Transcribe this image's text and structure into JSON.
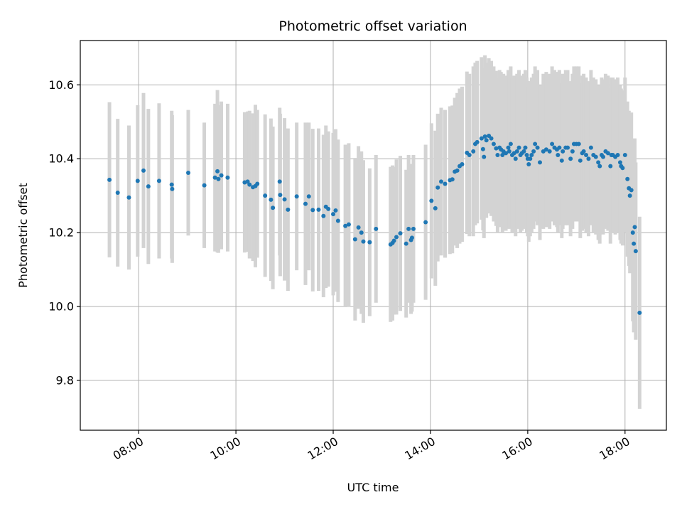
{
  "chart_data": {
    "type": "scatter",
    "title": "Photometric offset variation",
    "xlabel": "UTC time",
    "ylabel": "Photometric offset",
    "x_unit": "hours UTC",
    "xlim_hours": [
      6.8,
      18.85
    ],
    "ylim": [
      9.665,
      10.72
    ],
    "x_ticks": [
      {
        "hour": 8,
        "label": "08:00"
      },
      {
        "hour": 10,
        "label": "10:00"
      },
      {
        "hour": 12,
        "label": "12:00"
      },
      {
        "hour": 14,
        "label": "14:00"
      },
      {
        "hour": 16,
        "label": "16:00"
      },
      {
        "hour": 18,
        "label": "18:00"
      }
    ],
    "y_ticks": [
      {
        "value": 9.8,
        "label": "9.8"
      },
      {
        "value": 10.0,
        "label": "10.0"
      },
      {
        "value": 10.2,
        "label": "10.2"
      },
      {
        "value": 10.4,
        "label": "10.4"
      },
      {
        "value": 10.6,
        "label": "10.6"
      }
    ],
    "grid": true,
    "colors": {
      "points": "#1f77b4",
      "error_bars": "#d3d3d3",
      "grid": "#b0b0b0"
    },
    "series": [
      {
        "points": [
          [
            7.4,
            10.343,
            0.21
          ],
          [
            7.57,
            10.308,
            0.2
          ],
          [
            7.8,
            10.295,
            0.195
          ],
          [
            7.98,
            10.34,
            0.205
          ],
          [
            8.1,
            10.368,
            0.21
          ],
          [
            8.2,
            10.325,
            0.21
          ],
          [
            8.42,
            10.34,
            0.21
          ],
          [
            8.68,
            10.33,
            0.2
          ],
          [
            8.69,
            10.318,
            0.2
          ],
          [
            9.02,
            10.362,
            0.17
          ],
          [
            9.35,
            10.328,
            0.17
          ],
          [
            9.57,
            10.349,
            0.2
          ],
          [
            9.62,
            10.366,
            0.22
          ],
          [
            9.64,
            10.345,
            0.2
          ],
          [
            9.7,
            10.355,
            0.2
          ],
          [
            9.83,
            10.349,
            0.2
          ],
          [
            10.18,
            10.336,
            0.19
          ],
          [
            10.24,
            10.338,
            0.19
          ],
          [
            10.28,
            10.33,
            0.2
          ],
          [
            10.35,
            10.323,
            0.2
          ],
          [
            10.4,
            10.326,
            0.22
          ],
          [
            10.44,
            10.332,
            0.2
          ],
          [
            10.6,
            10.3,
            0.22
          ],
          [
            10.72,
            10.289,
            0.22
          ],
          [
            10.76,
            10.267,
            0.22
          ],
          [
            10.9,
            10.338,
            0.2
          ],
          [
            10.91,
            10.302,
            0.22
          ],
          [
            11.0,
            10.29,
            0.22
          ],
          [
            11.07,
            10.262,
            0.22
          ],
          [
            11.25,
            10.298,
            0.2
          ],
          [
            11.43,
            10.278,
            0.22
          ],
          [
            11.5,
            10.298,
            0.2
          ],
          [
            11.58,
            10.261,
            0.22
          ],
          [
            11.7,
            10.262,
            0.22
          ],
          [
            11.8,
            10.245,
            0.22
          ],
          [
            11.85,
            10.27,
            0.22
          ],
          [
            11.9,
            10.264,
            0.21
          ],
          [
            12.0,
            10.25,
            0.22
          ],
          [
            12.05,
            10.26,
            0.22
          ],
          [
            12.1,
            10.232,
            0.22
          ],
          [
            12.25,
            10.218,
            0.22
          ],
          [
            12.32,
            10.222,
            0.22
          ],
          [
            12.45,
            10.182,
            0.22
          ],
          [
            12.52,
            10.214,
            0.22
          ],
          [
            12.58,
            10.2,
            0.22
          ],
          [
            12.62,
            10.176,
            0.22
          ],
          [
            12.75,
            10.174,
            0.2
          ],
          [
            12.88,
            10.21,
            0.2
          ],
          [
            13.18,
            10.168,
            0.21
          ],
          [
            13.22,
            10.172,
            0.21
          ],
          [
            13.25,
            10.178,
            0.2
          ],
          [
            13.3,
            10.188,
            0.21
          ],
          [
            13.38,
            10.198,
            0.21
          ],
          [
            13.5,
            10.17,
            0.2
          ],
          [
            13.55,
            10.21,
            0.2
          ],
          [
            13.6,
            10.18,
            0.2
          ],
          [
            13.62,
            10.186,
            0.2
          ],
          [
            13.65,
            10.21,
            0.2
          ],
          [
            13.9,
            10.228,
            0.21
          ],
          [
            14.02,
            10.286,
            0.21
          ],
          [
            14.1,
            10.266,
            0.21
          ],
          [
            14.15,
            10.322,
            0.2
          ],
          [
            14.22,
            10.338,
            0.2
          ],
          [
            14.3,
            10.332,
            0.2
          ],
          [
            14.4,
            10.342,
            0.2
          ],
          [
            14.45,
            10.344,
            0.2
          ],
          [
            14.5,
            10.365,
            0.2
          ],
          [
            14.55,
            10.368,
            0.21
          ],
          [
            14.6,
            10.38,
            0.21
          ],
          [
            14.65,
            10.385,
            0.21
          ],
          [
            14.75,
            10.416,
            0.22
          ],
          [
            14.8,
            10.41,
            0.22
          ],
          [
            14.88,
            10.42,
            0.23
          ],
          [
            14.92,
            10.44,
            0.22
          ],
          [
            14.96,
            10.445,
            0.22
          ],
          [
            15.05,
            10.455,
            0.22
          ],
          [
            15.08,
            10.426,
            0.22
          ],
          [
            15.1,
            10.405,
            0.22
          ],
          [
            15.12,
            10.46,
            0.22
          ],
          [
            15.15,
            10.45,
            0.21
          ],
          [
            15.2,
            10.462,
            0.21
          ],
          [
            15.25,
            10.455,
            0.21
          ],
          [
            15.3,
            10.44,
            0.21
          ],
          [
            15.35,
            10.428,
            0.21
          ],
          [
            15.38,
            10.41,
            0.21
          ],
          [
            15.42,
            10.43,
            0.21
          ],
          [
            15.45,
            10.425,
            0.21
          ],
          [
            15.48,
            10.41,
            0.21
          ],
          [
            15.5,
            10.42,
            0.21
          ],
          [
            15.55,
            10.415,
            0.21
          ],
          [
            15.6,
            10.43,
            0.21
          ],
          [
            15.62,
            10.42,
            0.21
          ],
          [
            15.65,
            10.44,
            0.21
          ],
          [
            15.68,
            10.41,
            0.21
          ],
          [
            15.72,
            10.415,
            0.21
          ],
          [
            15.75,
            10.4,
            0.21
          ],
          [
            15.78,
            10.42,
            0.21
          ],
          [
            15.82,
            10.43,
            0.21
          ],
          [
            15.85,
            10.41,
            0.21
          ],
          [
            15.88,
            10.415,
            0.21
          ],
          [
            15.92,
            10.42,
            0.21
          ],
          [
            15.95,
            10.43,
            0.21
          ],
          [
            15.98,
            10.41,
            0.21
          ],
          [
            16.0,
            10.4,
            0.21
          ],
          [
            16.02,
            10.385,
            0.21
          ],
          [
            16.05,
            10.4,
            0.21
          ],
          [
            16.08,
            10.41,
            0.21
          ],
          [
            16.12,
            10.42,
            0.21
          ],
          [
            16.15,
            10.44,
            0.21
          ],
          [
            16.2,
            10.43,
            0.21
          ],
          [
            16.25,
            10.39,
            0.21
          ],
          [
            16.32,
            10.42,
            0.21
          ],
          [
            16.38,
            10.425,
            0.21
          ],
          [
            16.45,
            10.42,
            0.21
          ],
          [
            16.5,
            10.44,
            0.21
          ],
          [
            16.55,
            10.43,
            0.21
          ],
          [
            16.6,
            10.425,
            0.21
          ],
          [
            16.62,
            10.41,
            0.21
          ],
          [
            16.65,
            10.43,
            0.21
          ],
          [
            16.7,
            10.395,
            0.21
          ],
          [
            16.72,
            10.42,
            0.21
          ],
          [
            16.78,
            10.43,
            0.21
          ],
          [
            16.82,
            10.43,
            0.21
          ],
          [
            16.88,
            10.4,
            0.21
          ],
          [
            16.92,
            10.42,
            0.21
          ],
          [
            16.95,
            10.44,
            0.21
          ],
          [
            17.0,
            10.44,
            0.21
          ],
          [
            17.05,
            10.44,
            0.21
          ],
          [
            17.08,
            10.395,
            0.21
          ],
          [
            17.12,
            10.415,
            0.21
          ],
          [
            17.15,
            10.42,
            0.21
          ],
          [
            17.2,
            10.41,
            0.21
          ],
          [
            17.25,
            10.4,
            0.21
          ],
          [
            17.3,
            10.43,
            0.21
          ],
          [
            17.35,
            10.41,
            0.21
          ],
          [
            17.4,
            10.405,
            0.21
          ],
          [
            17.45,
            10.39,
            0.21
          ],
          [
            17.48,
            10.38,
            0.21
          ],
          [
            17.52,
            10.41,
            0.21
          ],
          [
            17.55,
            10.405,
            0.21
          ],
          [
            17.6,
            10.42,
            0.21
          ],
          [
            17.65,
            10.415,
            0.21
          ],
          [
            17.7,
            10.38,
            0.21
          ],
          [
            17.72,
            10.41,
            0.21
          ],
          [
            17.75,
            10.41,
            0.21
          ],
          [
            17.8,
            10.405,
            0.21
          ],
          [
            17.85,
            10.41,
            0.21
          ],
          [
            17.9,
            10.39,
            0.21
          ],
          [
            17.92,
            10.38,
            0.21
          ],
          [
            17.95,
            10.375,
            0.21
          ],
          [
            18.0,
            10.41,
            0.21
          ],
          [
            18.05,
            10.345,
            0.21
          ],
          [
            18.08,
            10.32,
            0.21
          ],
          [
            18.1,
            10.3,
            0.21
          ],
          [
            18.13,
            10.315,
            0.21
          ],
          [
            18.16,
            10.2,
            0.24
          ],
          [
            18.18,
            10.17,
            0.24
          ],
          [
            18.2,
            10.215,
            0.24
          ],
          [
            18.22,
            10.15,
            0.24
          ],
          [
            18.3,
            9.983,
            0.26
          ]
        ]
      }
    ]
  }
}
